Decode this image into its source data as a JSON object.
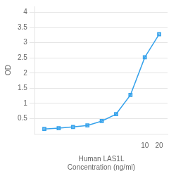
{
  "chart_data": {
    "type": "line",
    "x": [
      0.078,
      0.156,
      0.312,
      0.625,
      1.25,
      2.5,
      5,
      10,
      20
    ],
    "values": [
      0.158,
      0.183,
      0.224,
      0.274,
      0.418,
      0.648,
      1.28,
      2.52,
      3.28
    ],
    "xlabel": [
      "Human LAS1L",
      "Concentration (ng/ml)"
    ],
    "ylabel": "OD",
    "log": "x",
    "xlim": [
      0.05,
      30
    ],
    "xticks": [
      10,
      20
    ],
    "ylim": [
      0,
      4.2
    ],
    "yticks": [
      0.5,
      1,
      1.5,
      2,
      2.5,
      3,
      3.5,
      4
    ],
    "grid": "y",
    "marker": "square"
  }
}
